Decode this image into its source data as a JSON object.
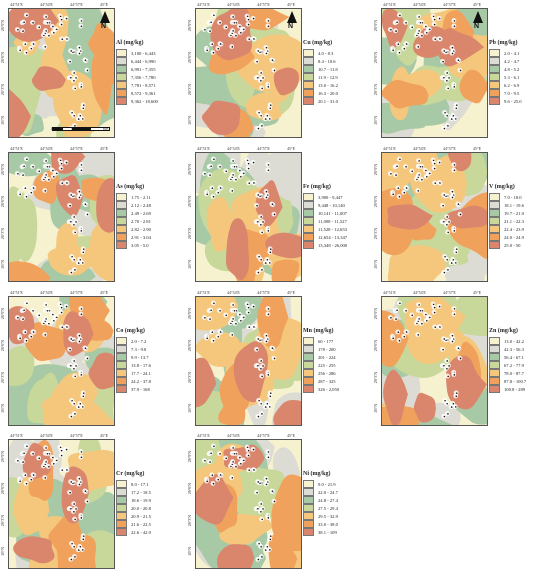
{
  "panels": [
    {
      "id": "al",
      "title": "Al (mg/kg)",
      "classes": [
        "3,100 - 6,443",
        "6,444 - 6,990",
        "6,991 - 7,355",
        "7,356 - 7,780",
        "7,781 - 8,571",
        "8,572 - 9,361",
        "9,362 - 18,600"
      ],
      "colors": [
        "#f6f2cf",
        "#dcdcd4",
        "#a8c9a6",
        "#c7d89a",
        "#f5c77d",
        "#f0a25c",
        "#d9866c"
      ],
      "north_arrow": true,
      "north_label": "N",
      "scale_labels": [
        "0",
        "2",
        "4",
        "8",
        "Km"
      ]
    },
    {
      "id": "cu",
      "title": "Cu (mg/kg)",
      "classes": [
        "4.0 - 8.3",
        "8.4 - 10.6",
        "10.7 - 11.8",
        "11.9 - 12.9",
        "13.0 - 16.2",
        "16.3 - 20.0",
        "20.1 - 31.0"
      ],
      "colors": [
        "#f6f2cf",
        "#dcdcd4",
        "#a8c9a6",
        "#c7d89a",
        "#f5c77d",
        "#f0a25c",
        "#d9866c"
      ],
      "north_arrow": true,
      "north_label": "N"
    },
    {
      "id": "pb",
      "title": "Pb (mg/kg)",
      "classes": [
        "2.0 - 4.1",
        "4.2 - 4.7",
        "4.8 - 5.2",
        "5.3 - 6.1",
        "6.2 - 6.9",
        "7.0 - 9.5",
        "9.6 - 25.0"
      ],
      "colors": [
        "#f6f2cf",
        "#dcdcd4",
        "#a8c9a6",
        "#c7d89a",
        "#f5c77d",
        "#f0a25c",
        "#d9866c"
      ],
      "north_arrow": true,
      "north_label": "N"
    },
    {
      "id": "as",
      "title": "As (mg/kg)",
      "classes": [
        "1.75 - 2.11",
        "2.12 - 2.48",
        "2.49 - 2.69",
        "2.70 - 2.81",
        "2.82 - 2.90",
        "2.91 - 3.04",
        "3.05 - 5.0"
      ],
      "colors": [
        "#f6f2cf",
        "#dcdcd4",
        "#a8c9a6",
        "#c7d89a",
        "#f5c77d",
        "#f0a25c",
        "#d9866c"
      ]
    },
    {
      "id": "fe",
      "title": "Fe (mg/kg)",
      "classes": [
        "3,900 - 9,447",
        "9,448 - 10,140",
        "10,141 - 11,007",
        "11,008 - 11,527",
        "11,528 - 12,653",
        "12,654 - 13,347",
        "13,348 - 26,000"
      ],
      "colors": [
        "#f6f2cf",
        "#dcdcd4",
        "#a8c9a6",
        "#c7d89a",
        "#f5c77d",
        "#f0a25c",
        "#d9866c"
      ]
    },
    {
      "id": "v",
      "title": "V (mg/kg)",
      "classes": [
        "7.0 - 18.0",
        "18.1 - 19.6",
        "19.7 - 21.0",
        "21.1 - 22.3",
        "22.4 - 23.9",
        "24.0 - 24.9",
        "25.0 - 50"
      ],
      "colors": [
        "#f6f2cf",
        "#dcdcd4",
        "#a8c9a6",
        "#c7d89a",
        "#f5c77d",
        "#f0a25c",
        "#d9866c"
      ]
    },
    {
      "id": "co",
      "title": "Co (mg/kg)",
      "classes": [
        "2.0 - 7.2",
        "7.3 - 9.8",
        "9.9 - 13.7",
        "13.8 - 17.6",
        "17.7 - 24.1",
        "24.2 - 37.8",
        "37.9 - 168"
      ],
      "colors": [
        "#f6f2cf",
        "#dcdcd4",
        "#a8c9a6",
        "#c7d89a",
        "#f5c77d",
        "#f0a25c",
        "#d9866c"
      ]
    },
    {
      "id": "mn",
      "title": "Mn (mg/kg)",
      "classes": [
        "60 - 177",
        "178 - 200",
        "201 - 224",
        "225 - 255",
        "256 - 286",
        "287 - 325",
        "326 - 2,050"
      ],
      "colors": [
        "#f6f2cf",
        "#dcdcd4",
        "#a8c9a6",
        "#c7d89a",
        "#f5c77d",
        "#f0a25c",
        "#d9866c"
      ]
    },
    {
      "id": "zn",
      "title": "Zn (mg/kg)",
      "classes": [
        "13.0 - 42.2",
        "42.3 - 56.3",
        "56.4 - 67.1",
        "67.2 - 77.9",
        "78.0 - 87.7",
        "87.8 - 100.7",
        "100.8 - 289"
      ],
      "colors": [
        "#f6f2cf",
        "#dcdcd4",
        "#a8c9a6",
        "#c7d89a",
        "#f5c77d",
        "#f0a25c",
        "#d9866c"
      ]
    },
    {
      "id": "cr",
      "title": "Cr (mg/kg)",
      "classes": [
        "8.0 - 17.1",
        "17.2 - 18.5",
        "18.6 - 19.9",
        "20.0 - 20.8",
        "20.9 - 21.5",
        "21.6 - 22.5",
        "22.6 - 42.0"
      ],
      "colors": [
        "#f6f2cf",
        "#dcdcd4",
        "#a8c9a6",
        "#c7d89a",
        "#f5c77d",
        "#f0a25c",
        "#d9866c"
      ]
    },
    {
      "id": "ni",
      "title": "Ni (mg/kg)",
      "classes": [
        "9.0 - 21.9",
        "22.0 - 24.7",
        "24.8 - 27.4",
        "27.5 - 29.4",
        "29.5 - 32.9",
        "33.0 - 38.0",
        "38.1 - 109"
      ],
      "colors": [
        "#f6f2cf",
        "#dcdcd4",
        "#a8c9a6",
        "#c7d89a",
        "#f5c77d",
        "#f0a25c",
        "#d9866c"
      ]
    }
  ],
  "longitude_ticks": [
    "44°51'E",
    "44°54'E",
    "44°57'E",
    "45°E"
  ],
  "latitude_ticks": [
    "26°9'N",
    "26°6'N",
    "26°3'N",
    "26°N"
  ]
}
